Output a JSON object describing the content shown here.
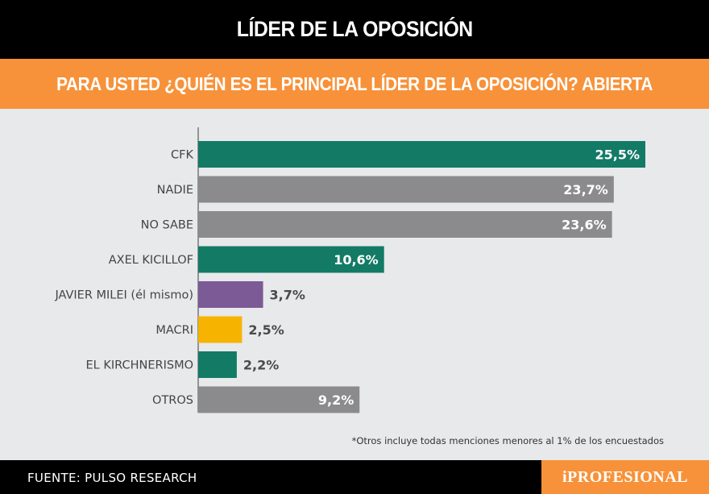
{
  "header": {
    "title": "LÍDER DE LA OPOSICIÓN"
  },
  "chart_data": {
    "type": "bar",
    "orientation": "horizontal",
    "title": "PARA USTED ¿QUIÉN ES EL PRINCIPAL LÍDER DE LA OPOSICIÓN? ABIERTA",
    "categories": [
      "CFK",
      "NADIE",
      "NO SABE",
      "AXEL KICILLOF",
      "JAVIER MILEI (él mismo)",
      "MACRI",
      "EL KIRCHNERISMO",
      "OTROS"
    ],
    "values": [
      25.5,
      23.7,
      23.6,
      10.6,
      3.7,
      2.5,
      2.2,
      9.2
    ],
    "value_labels": [
      "25,5%",
      "23,7%",
      "23,6%",
      "10,6%",
      "3,7%",
      "2,5%",
      "2,2%",
      "9,2%"
    ],
    "colors": [
      "#137a66",
      "#8b8b8d",
      "#8b8b8d",
      "#137a66",
      "#7b5a96",
      "#f6b400",
      "#137a66",
      "#8b8b8d"
    ],
    "xlim": [
      0,
      25.5
    ],
    "grid": false,
    "legend": "none"
  },
  "footnote": "*Otros incluye todas menciones menores al 1% de los encuestados",
  "footer": {
    "source": "FUENTE: PULSO RESEARCH",
    "brand": "iPROFESIONAL"
  },
  "colors": {
    "accent": "#f7923a",
    "header_bg": "#000000",
    "background": "#e8e9eb"
  }
}
